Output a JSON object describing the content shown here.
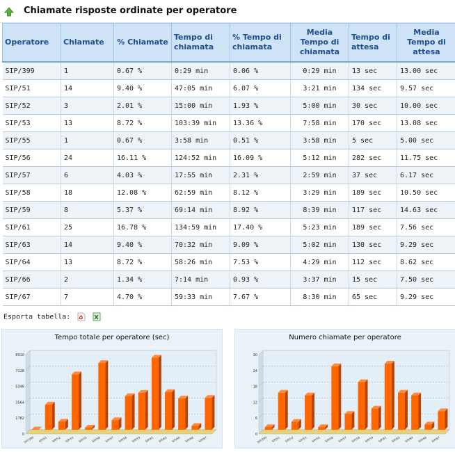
{
  "header": {
    "title": "Chiamate risposte ordinate per operatore",
    "icon": "green-up-arrow-icon"
  },
  "table": {
    "columns": [
      "Operatore",
      "Chiamate",
      "% Chiamate",
      "Tempo di chiamata",
      "% Tempo di chiamata",
      "Media Tempo di chiamata",
      "Tempo di attesa",
      "Media Tempo di attesa"
    ],
    "rows": [
      [
        "SIP/399",
        "1",
        "0.67 %",
        "0:29 min",
        "0.06 %",
        "0:29 min",
        "13 sec",
        "13.00 sec"
      ],
      [
        "SIP/51",
        "14",
        "9.40 %",
        "47:05 min",
        "6.07 %",
        "3:21 min",
        "134 sec",
        "9.57 sec"
      ],
      [
        "SIP/52",
        "3",
        "2.01 %",
        "15:00 min",
        "1.93 %",
        "5:00 min",
        "30 sec",
        "10.00 sec"
      ],
      [
        "SIP/53",
        "13",
        "8.72 %",
        "103:39 min",
        "13.36 %",
        "7:58 min",
        "170 sec",
        "13.08 sec"
      ],
      [
        "SIP/55",
        "1",
        "0.67 %",
        "3:58 min",
        "0.51 %",
        "3:58 min",
        "5 sec",
        "5.00 sec"
      ],
      [
        "SIP/56",
        "24",
        "16.11 %",
        "124:52 min",
        "16.09 %",
        "5:12 min",
        "282 sec",
        "11.75 sec"
      ],
      [
        "SIP/57",
        "6",
        "4.03 %",
        "17:55 min",
        "2.31 %",
        "2:59 min",
        "37 sec",
        "6.17 sec"
      ],
      [
        "SIP/58",
        "18",
        "12.08 %",
        "62:59 min",
        "8.12 %",
        "3:29 min",
        "189 sec",
        "10.50 sec"
      ],
      [
        "SIP/59",
        "8",
        "5.37 %",
        "69:14 min",
        "8.92 %",
        "8:39 min",
        "117 sec",
        "14.63 sec"
      ],
      [
        "SIP/61",
        "25",
        "16.78 %",
        "134:59 min",
        "17.40 %",
        "5:23 min",
        "189 sec",
        "7.56 sec"
      ],
      [
        "SIP/63",
        "14",
        "9.40 %",
        "70:32 min",
        "9.09 %",
        "5:02 min",
        "130 sec",
        "9.29 sec"
      ],
      [
        "SIP/64",
        "13",
        "8.72 %",
        "58:26 min",
        "7.53 %",
        "4:29 min",
        "112 sec",
        "8.62 sec"
      ],
      [
        "SIP/66",
        "2",
        "1.34 %",
        "7:14 min",
        "0.93 %",
        "3:37 min",
        "15 sec",
        "7.50 sec"
      ],
      [
        "SIP/67",
        "7",
        "4.70 %",
        "59:33 min",
        "7.67 %",
        "8:30 min",
        "65 sec",
        "9.29 sec"
      ]
    ]
  },
  "export": {
    "label": "Esporta tabella:",
    "pdf_icon": "pdf-icon",
    "excel_icon": "excel-icon"
  },
  "colors": {
    "bar": "#ff6600",
    "bar_dark": "#b84400",
    "header_bg": "#cfe3f6",
    "header_text": "#1f4e8c",
    "chart_bg": "#eaf2f8",
    "plot_bg": "#e3eef7",
    "floor": "#e8d27a"
  },
  "chart_data": [
    {
      "type": "bar",
      "title": "Tempo totale per operatore (sec)",
      "categories": [
        "SIP/399",
        "SIP/51",
        "SIP/52",
        "SIP/53",
        "SIP/55",
        "SIP/56",
        "SIP/57",
        "SIP/58",
        "SIP/59",
        "SIP/61",
        "SIP/63",
        "SIP/64",
        "SIP/66",
        "SIP/67"
      ],
      "values": [
        29,
        2825,
        900,
        6219,
        238,
        7492,
        1075,
        3779,
        4154,
        8099,
        4232,
        3506,
        434,
        3573
      ],
      "yticks": [
        "0",
        "1782",
        "3564",
        "5346",
        "7128",
        "8910"
      ],
      "ylim": [
        0,
        8910
      ],
      "grid": true
    },
    {
      "type": "bar",
      "title": "Numero chiamate per operatore",
      "categories": [
        "SIP/399",
        "SIP/51",
        "SIP/52",
        "SIP/53",
        "SIP/55",
        "SIP/56",
        "SIP/57",
        "SIP/58",
        "SIP/59",
        "SIP/61",
        "SIP/63",
        "SIP/64",
        "SIP/66",
        "SIP/67"
      ],
      "values": [
        1,
        14,
        3,
        13,
        1,
        24,
        6,
        18,
        8,
        25,
        14,
        13,
        2,
        7
      ],
      "yticks": [
        "0",
        "6",
        "12",
        "18",
        "24",
        "30"
      ],
      "ylim": [
        0,
        30
      ],
      "grid": true
    }
  ]
}
